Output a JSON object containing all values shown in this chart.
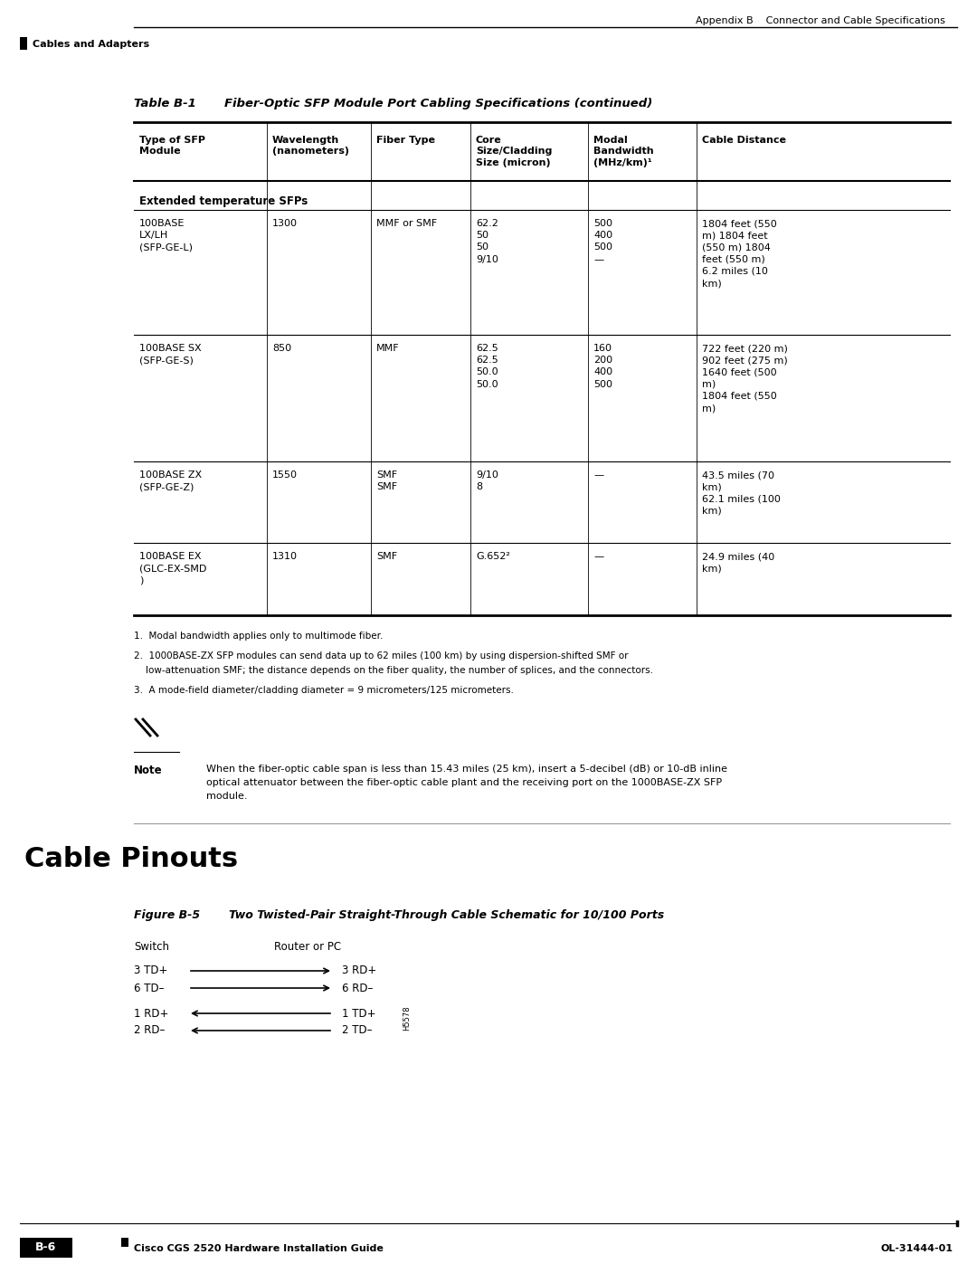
{
  "page_width": 10.8,
  "page_height": 13.97,
  "bg_color": "#ffffff",
  "header_text": "Appendix B    Connector and Cable Specifications",
  "sidebar_text": "Cables and Adapters",
  "table_title_label": "Table B-1",
  "table_title_text": "Fiber-Optic SFP Module Port Cabling Specifications (continued)",
  "col_headers": [
    "Type of SFP\nModule",
    "Wavelength\n(nanometers)",
    "Fiber Type",
    "Core\nSize/Cladding\nSize (micron)",
    "Modal\nBandwidth\n(MHz/km)¹",
    "Cable Distance"
  ],
  "section_header": "Extended temperature SFPs",
  "rows": [
    {
      "type": "100BASE\nLX/LH\n(SFP-GE-L)",
      "wavelength": "1300",
      "fiber": "MMF or SMF",
      "core": "62.2\n50\n50\n9/10",
      "bandwidth": "500\n400\n500\n—",
      "distance": "1804 feet (550\nm) 1804 feet\n(550 m) 1804\nfeet (550 m)\n6.2 miles (10\nkm)"
    },
    {
      "type": "100BASE SX\n(SFP-GE-S)",
      "wavelength": "850",
      "fiber": "MMF",
      "core": "62.5\n62.5\n50.0\n50.0",
      "bandwidth": "160\n200\n400\n500",
      "distance": "722 feet (220 m)\n902 feet (275 m)\n1640 feet (500\nm)\n1804 feet (550\nm)"
    },
    {
      "type": "100BASE ZX\n(SFP-GE-Z)",
      "wavelength": "1550",
      "fiber": "SMF\nSMF",
      "core": "9/10\n8",
      "bandwidth": "—",
      "distance": "43.5 miles (70\nkm)\n62.1 miles (100\nkm)"
    },
    {
      "type": "100BASE EX\n(GLC-EX-SMD\n)",
      "wavelength": "1310",
      "fiber": "SMF",
      "core": "G.652²",
      "bandwidth": "—",
      "distance": "24.9 miles (40\nkm)"
    }
  ],
  "footnote1": "1.  Modal bandwidth applies only to multimode fiber.",
  "footnote2": "2.  1000BASE-ZX SFP modules can send data up to 62 miles (100 km) by using dispersion-shifted SMF or",
  "footnote2b": "    low-attenuation SMF; the distance depends on the fiber quality, the number of splices, and the connectors.",
  "footnote3": "3.  A mode-field diameter/cladding diameter = 9 micrometers/125 micrometers.",
  "note_text": "When the fiber-optic cable span is less than 15.43 miles (25 km), insert a 5-decibel (dB) or 10-dB inline\noptical attenuator between the fiber-optic cable plant and the receiving port on the 1000BASE-ZX SFP\nmodule.",
  "cable_pinouts_title": "Cable Pinouts",
  "figure_label": "Figure B-5",
  "figure_title": "Two Twisted-Pair Straight-Through Cable Schematic for 10/100 Ports",
  "switch_label": "Switch",
  "router_label": "Router or PC",
  "line1_left": "3 TD+",
  "line1_right": "3 RD+",
  "line1_dir": "right",
  "line2_left": "6 TD–",
  "line2_right": "6 RD–",
  "line2_dir": "right",
  "line3_left": "1 RD+",
  "line3_right": "1 TD+",
  "line3_dir": "left",
  "line4_left": "2 RD–",
  "line4_right": "2 TD–",
  "line4_dir": "left",
  "hs_label": "H5578",
  "footer_left": "Cisco CGS 2520 Hardware Installation Guide",
  "footer_page": "B-6",
  "footer_right": "OL-31444-01"
}
